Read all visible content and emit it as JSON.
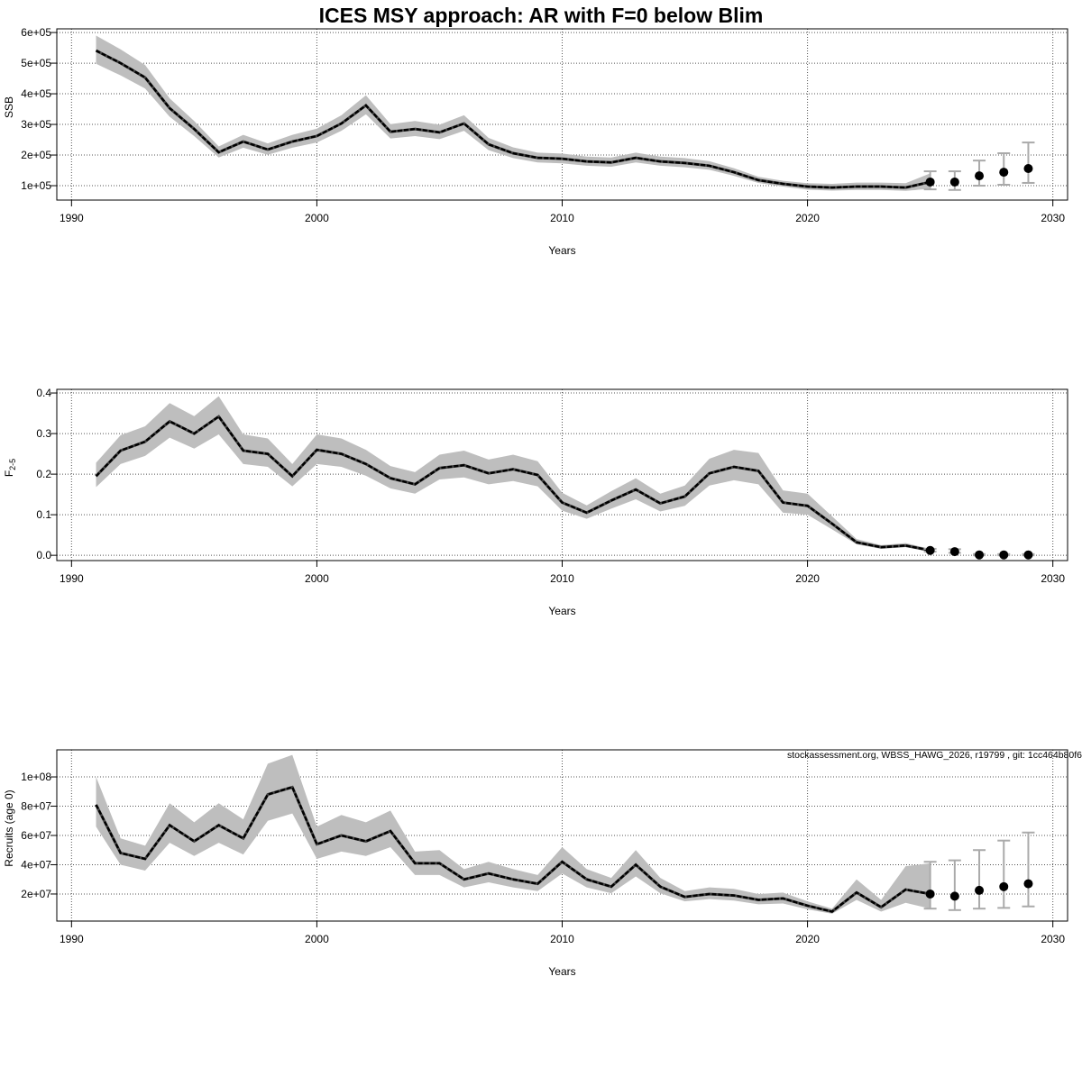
{
  "title": "ICES MSY approach: AR with F=0 below Blim",
  "watermark": "stockassessment.org, WBSS_HAWG_2026, r19799 , git: 1cc464b80f6",
  "colors": {
    "ci_band": "#bebebe",
    "line": "#000000",
    "forecast_point": "#000000",
    "forecast_bar": "#aaaaaa",
    "grid": "#555555"
  },
  "chart_data": [
    {
      "type": "line",
      "xlabel": "Years",
      "ylabel": "SSB",
      "xlim": [
        1989.4,
        2030.6
      ],
      "ylim": [
        53000,
        612000
      ],
      "grid": true,
      "x_ticks": {
        "values": [
          1990,
          2000,
          2010,
          2020,
          2030
        ],
        "labels": [
          "1990",
          "2000",
          "2010",
          "2020",
          "2030"
        ]
      },
      "y_ticks": {
        "values": [
          100000,
          200000,
          300000,
          400000,
          500000,
          600000
        ],
        "labels": [
          "1e+05",
          "2e+05",
          "3e+05",
          "4e+05",
          "5e+05",
          "6e+05"
        ]
      },
      "years": [
        1991,
        1992,
        1993,
        1994,
        1995,
        1996,
        1997,
        1998,
        1999,
        2000,
        2001,
        2002,
        2003,
        2004,
        2005,
        2006,
        2007,
        2008,
        2009,
        2010,
        2011,
        2012,
        2013,
        2014,
        2015,
        2016,
        2017,
        2018,
        2019,
        2020,
        2021,
        2022,
        2023,
        2024,
        2025
      ],
      "estimate": [
        541000,
        500000,
        453000,
        353000,
        285000,
        209000,
        244000,
        218000,
        244000,
        262000,
        303000,
        362000,
        276000,
        285000,
        274000,
        303000,
        235000,
        206000,
        191000,
        188000,
        179000,
        176000,
        191000,
        179000,
        174000,
        165000,
        144000,
        118000,
        106000,
        97000,
        94000,
        97000,
        97000,
        94000,
        112000
      ],
      "lower": [
        498000,
        460000,
        417000,
        325000,
        262000,
        192000,
        224000,
        201000,
        224000,
        241000,
        279000,
        333000,
        254000,
        262000,
        252000,
        279000,
        216000,
        190000,
        176000,
        173000,
        165000,
        162000,
        176000,
        165000,
        160000,
        152000,
        132000,
        109000,
        97000,
        87000,
        84000,
        86000,
        86000,
        83000,
        90000
      ],
      "upper": [
        590000,
        545000,
        494000,
        385000,
        311000,
        228000,
        266000,
        238000,
        266000,
        286000,
        330000,
        395000,
        301000,
        311000,
        299000,
        330000,
        256000,
        225000,
        208000,
        205000,
        195000,
        192000,
        208000,
        195000,
        190000,
        180000,
        157000,
        129000,
        116000,
        108000,
        106000,
        110000,
        110000,
        108000,
        140000
      ],
      "forecast": {
        "years": [
          2025,
          2026,
          2027,
          2028,
          2029
        ],
        "values": [
          112000,
          112000,
          132000,
          144000,
          156000
        ],
        "lower": [
          88000,
          86000,
          100000,
          103000,
          109000
        ],
        "upper": [
          147000,
          147000,
          182000,
          206000,
          241000
        ]
      }
    },
    {
      "type": "line",
      "xlabel": "Years",
      "ylabel": "F",
      "ylabel_sub": "2-5",
      "xlim": [
        1989.4,
        2030.6
      ],
      "ylim": [
        -0.013,
        0.409
      ],
      "grid": true,
      "x_ticks": {
        "values": [
          1990,
          2000,
          2010,
          2020,
          2030
        ],
        "labels": [
          "1990",
          "2000",
          "2010",
          "2020",
          "2030"
        ]
      },
      "y_ticks": {
        "values": [
          0,
          0.1,
          0.2,
          0.3,
          0.4
        ],
        "labels": [
          "0.0",
          "0.1",
          "0.2",
          "0.3",
          "0.4"
        ]
      },
      "years": [
        1991,
        1992,
        1993,
        1994,
        1995,
        1996,
        1997,
        1998,
        1999,
        2000,
        2001,
        2002,
        2003,
        2004,
        2005,
        2006,
        2007,
        2008,
        2009,
        2010,
        2011,
        2012,
        2013,
        2014,
        2015,
        2016,
        2017,
        2018,
        2019,
        2020,
        2021,
        2022,
        2023,
        2024,
        2025
      ],
      "estimate": [
        0.195,
        0.258,
        0.28,
        0.33,
        0.3,
        0.342,
        0.258,
        0.25,
        0.195,
        0.26,
        0.25,
        0.225,
        0.19,
        0.175,
        0.215,
        0.222,
        0.202,
        0.212,
        0.198,
        0.13,
        0.105,
        0.135,
        0.162,
        0.128,
        0.145,
        0.202,
        0.218,
        0.208,
        0.13,
        0.122,
        0.078,
        0.032,
        0.02,
        0.024,
        0.012
      ],
      "lower": [
        0.168,
        0.225,
        0.245,
        0.29,
        0.263,
        0.298,
        0.225,
        0.218,
        0.17,
        0.225,
        0.218,
        0.196,
        0.165,
        0.152,
        0.187,
        0.192,
        0.175,
        0.183,
        0.17,
        0.11,
        0.09,
        0.115,
        0.138,
        0.108,
        0.122,
        0.172,
        0.185,
        0.175,
        0.105,
        0.1,
        0.064,
        0.027,
        0.016,
        0.02,
        0.009
      ],
      "upper": [
        0.228,
        0.296,
        0.318,
        0.375,
        0.343,
        0.392,
        0.298,
        0.288,
        0.225,
        0.298,
        0.288,
        0.26,
        0.22,
        0.205,
        0.248,
        0.258,
        0.236,
        0.248,
        0.232,
        0.154,
        0.123,
        0.158,
        0.19,
        0.152,
        0.172,
        0.238,
        0.26,
        0.252,
        0.16,
        0.152,
        0.096,
        0.04,
        0.025,
        0.03,
        0.016
      ],
      "forecast": {
        "years": [
          2025,
          2026,
          2027,
          2028,
          2029
        ],
        "values": [
          0.012,
          0.009,
          0.001,
          0.001,
          0.001
        ],
        "lower": [
          0.009,
          0.006,
          0,
          0,
          0
        ],
        "upper": [
          0.016,
          0.015,
          0.003,
          0.003,
          0.003
        ]
      }
    },
    {
      "type": "line",
      "xlabel": "Years",
      "ylabel": "Recruits (age 0)",
      "xlim": [
        1989.4,
        2030.6
      ],
      "ylim": [
        1500000,
        118500000
      ],
      "grid": true,
      "x_ticks": {
        "values": [
          1990,
          2000,
          2010,
          2020,
          2030
        ],
        "labels": [
          "1990",
          "2000",
          "2010",
          "2020",
          "2030"
        ]
      },
      "y_ticks": {
        "values": [
          20000000,
          40000000,
          60000000,
          80000000,
          100000000
        ],
        "labels": [
          "2e+07",
          "4e+07",
          "6e+07",
          "8e+07",
          "1e+08"
        ]
      },
      "years": [
        1991,
        1992,
        1993,
        1994,
        1995,
        1996,
        1997,
        1998,
        1999,
        2000,
        2001,
        2002,
        2003,
        2004,
        2005,
        2006,
        2007,
        2008,
        2009,
        2010,
        2011,
        2012,
        2013,
        2014,
        2015,
        2016,
        2017,
        2018,
        2019,
        2020,
        2021,
        2022,
        2023,
        2024,
        2025
      ],
      "estimate": [
        81000000.0,
        48000000.0,
        44000000.0,
        67000000.0,
        56000000.0,
        67000000.0,
        58000000.0,
        88000000.0,
        93000000.0,
        54000000.0,
        60000000.0,
        56000000.0,
        63000000.0,
        41000000.0,
        41000000.0,
        30000000.0,
        34000000.0,
        30000000.0,
        27000000.0,
        42000000.0,
        30000000.0,
        25000000.0,
        40000000.0,
        25000000.0,
        18000000.0,
        20000000.0,
        19000000.0,
        16000000.0,
        17000000.0,
        12000000.0,
        8000000.0,
        21000000.0,
        11000000.0,
        23000000.0,
        20000000.0
      ],
      "lower": [
        66000000.0,
        40000000.0,
        36000000.0,
        55000000.0,
        46000000.0,
        55000000.0,
        47000000.0,
        70000000.0,
        75000000.0,
        44000000.0,
        49000000.0,
        46000000.0,
        52000000.0,
        33000000.0,
        33000000.0,
        24500000.0,
        28000000.0,
        24500000.0,
        22000000.0,
        34000000.0,
        24500000.0,
        20500000.0,
        32000000.0,
        20500000.0,
        15000000.0,
        16500000.0,
        15500000.0,
        13000000.0,
        13500000.0,
        9500000.0,
        6500000.0,
        16000000.0,
        8000000.0,
        14000000.0,
        10000000.0
      ],
      "upper": [
        100000000.0,
        58000000.0,
        53000000.0,
        82000000.0,
        69000000.0,
        82000000.0,
        71000000.0,
        109000000.0,
        115000000.0,
        66000000.0,
        74000000.0,
        69000000.0,
        77000000.0,
        49000000.0,
        50000000.0,
        37000000.0,
        42000000.0,
        37000000.0,
        33000000.0,
        52000000.0,
        37000000.0,
        31000000.0,
        50000000.0,
        31000000.0,
        22000000.0,
        24500000.0,
        23500000.0,
        20000000.0,
        21000000.0,
        15000000.0,
        10000000.0,
        30000000.0,
        16000000.0,
        39000000.0,
        41000000.0
      ],
      "forecast": {
        "years": [
          2025,
          2026,
          2027,
          2028,
          2029
        ],
        "values": [
          20000000.0,
          18500000.0,
          22500000.0,
          25000000.0,
          27000000.0
        ],
        "lower": [
          10000000.0,
          9000000.0,
          10000000.0,
          10500000.0,
          11500000.0
        ],
        "upper": [
          42000000.0,
          43000000.0,
          50000000.0,
          56500000.0,
          62000000.0
        ]
      }
    }
  ]
}
